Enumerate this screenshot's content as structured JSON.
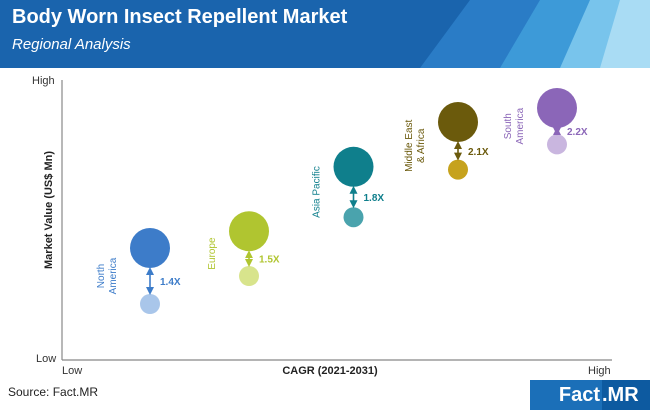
{
  "header": {
    "title": "Body Worn Insect Repellent Market",
    "subtitle": "Regional Analysis"
  },
  "footer": {
    "source": "Source: Fact.MR",
    "logo_left": "Fact",
    "logo_right": ".MR"
  },
  "chart_data": {
    "type": "scatter",
    "xlabel": "CAGR (2021-2031)",
    "ylabel": "Market Value (US$ Mn)",
    "x_tick_labels": [
      "Low",
      "High"
    ],
    "y_tick_labels": [
      "Low",
      "High"
    ],
    "xlim": [
      0,
      1
    ],
    "ylim": [
      0,
      1
    ],
    "grid": false,
    "series": [
      {
        "name": "North America",
        "label_lines": [
          "North",
          "America"
        ],
        "color": "#3d7cc9",
        "light_color": "#a9c6ea",
        "growth": "1.4X",
        "x": 0.16,
        "y_current": 0.2,
        "y_future": 0.4
      },
      {
        "name": "Europe",
        "label_lines": [
          "Europe"
        ],
        "color": "#b0c530",
        "light_color": "#d8e48c",
        "growth": "1.5X",
        "x": 0.34,
        "y_current": 0.3,
        "y_future": 0.46
      },
      {
        "name": "Asia Pacific",
        "label_lines": [
          "Asia Pacific"
        ],
        "color": "#0f7f8c",
        "light_color": "#4aa3ad",
        "growth": "1.8X",
        "x": 0.53,
        "y_current": 0.51,
        "y_future": 0.69
      },
      {
        "name": "Middle East & Africa",
        "label_lines": [
          "Middle East",
          "& Africa"
        ],
        "color": "#6b5a0c",
        "light_color": "#c6a21d",
        "growth": "2.1X",
        "x": 0.72,
        "y_current": 0.68,
        "y_future": 0.85
      },
      {
        "name": "South America",
        "label_lines": [
          "South",
          "America"
        ],
        "color": "#8b66b8",
        "light_color": "#c9b6df",
        "growth": "2.2X",
        "x": 0.9,
        "y_current": 0.77,
        "y_future": 0.9
      }
    ]
  }
}
